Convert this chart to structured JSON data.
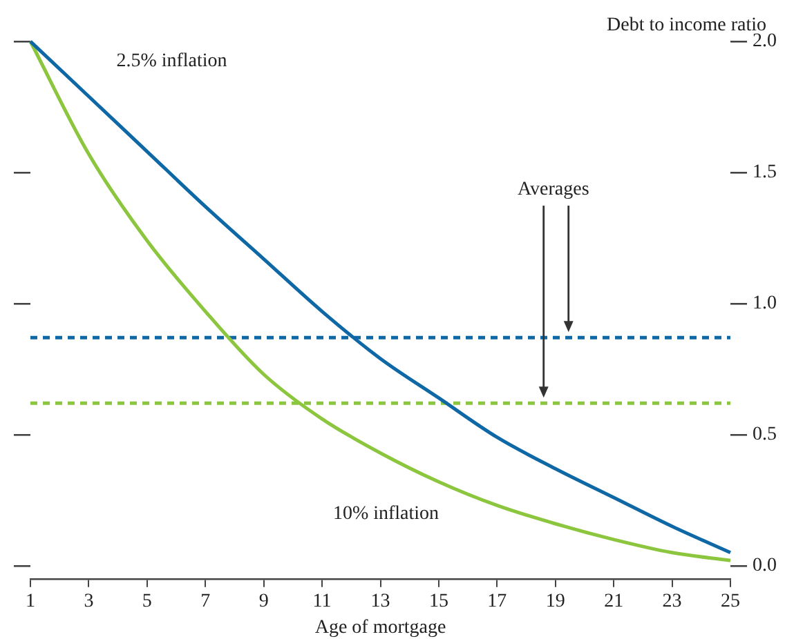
{
  "chart_data": {
    "type": "line",
    "xlabel": "Age of mortgage",
    "ylabel": "Debt to income ratio",
    "x": [
      1,
      3,
      5,
      7,
      9,
      11,
      13,
      15,
      17,
      19,
      21,
      23,
      25
    ],
    "series": [
      {
        "name": "2.5% inflation",
        "color": "#0f68a6",
        "values": [
          2.0,
          1.79,
          1.58,
          1.37,
          1.17,
          0.97,
          0.79,
          0.64,
          0.49,
          0.37,
          0.26,
          0.15,
          0.05
        ]
      },
      {
        "name": "10% inflation",
        "color": "#8cc63e",
        "values": [
          2.0,
          1.57,
          1.24,
          0.97,
          0.73,
          0.56,
          0.43,
          0.32,
          0.23,
          0.16,
          0.1,
          0.05,
          0.02
        ]
      }
    ],
    "xlim": [
      1,
      25
    ],
    "xticks": [
      1,
      3,
      5,
      7,
      9,
      11,
      13,
      15,
      17,
      19,
      21,
      23,
      25
    ],
    "ylim": [
      -0.05,
      2.0
    ],
    "yticks": [
      {
        "value": 0,
        "label": "0.0"
      },
      0.5,
      {
        "value": 1,
        "label": "1.0"
      },
      1.5,
      {
        "value": 2,
        "label": "2.0"
      }
    ],
    "ref_lines": [
      {
        "axis": "y",
        "value": 0.87,
        "color": "#0f68a6",
        "line_style": "dashed"
      },
      {
        "axis": "y",
        "value": 0.62,
        "color": "#8cc63e",
        "line_style": "dashed"
      }
    ],
    "annotations": [
      "Averages"
    ],
    "marker": "none",
    "line_style": "solid"
  }
}
